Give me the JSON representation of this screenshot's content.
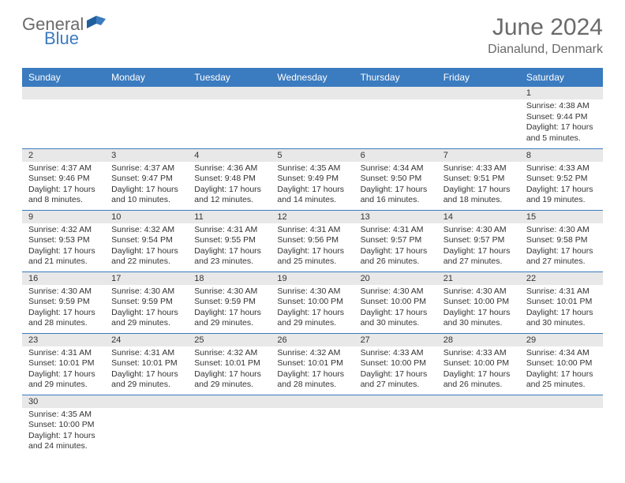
{
  "logo": {
    "text1": "General",
    "text2": "Blue"
  },
  "title": "June 2024",
  "location": "Dianalund, Denmark",
  "colors": {
    "header_bg": "#3b7bbf",
    "header_text": "#ffffff",
    "daynum_bg": "#e8e8e8",
    "divider": "#3b7bbf",
    "page_bg": "#ffffff",
    "text": "#333333",
    "title_color": "#6a6a6a"
  },
  "weekdays": [
    "Sunday",
    "Monday",
    "Tuesday",
    "Wednesday",
    "Thursday",
    "Friday",
    "Saturday"
  ],
  "weeks": [
    [
      {
        "n": "",
        "sr": "",
        "ss": "",
        "dl": ""
      },
      {
        "n": "",
        "sr": "",
        "ss": "",
        "dl": ""
      },
      {
        "n": "",
        "sr": "",
        "ss": "",
        "dl": ""
      },
      {
        "n": "",
        "sr": "",
        "ss": "",
        "dl": ""
      },
      {
        "n": "",
        "sr": "",
        "ss": "",
        "dl": ""
      },
      {
        "n": "",
        "sr": "",
        "ss": "",
        "dl": ""
      },
      {
        "n": "1",
        "sr": "Sunrise: 4:38 AM",
        "ss": "Sunset: 9:44 PM",
        "dl": "Daylight: 17 hours and 5 minutes."
      }
    ],
    [
      {
        "n": "2",
        "sr": "Sunrise: 4:37 AM",
        "ss": "Sunset: 9:46 PM",
        "dl": "Daylight: 17 hours and 8 minutes."
      },
      {
        "n": "3",
        "sr": "Sunrise: 4:37 AM",
        "ss": "Sunset: 9:47 PM",
        "dl": "Daylight: 17 hours and 10 minutes."
      },
      {
        "n": "4",
        "sr": "Sunrise: 4:36 AM",
        "ss": "Sunset: 9:48 PM",
        "dl": "Daylight: 17 hours and 12 minutes."
      },
      {
        "n": "5",
        "sr": "Sunrise: 4:35 AM",
        "ss": "Sunset: 9:49 PM",
        "dl": "Daylight: 17 hours and 14 minutes."
      },
      {
        "n": "6",
        "sr": "Sunrise: 4:34 AM",
        "ss": "Sunset: 9:50 PM",
        "dl": "Daylight: 17 hours and 16 minutes."
      },
      {
        "n": "7",
        "sr": "Sunrise: 4:33 AM",
        "ss": "Sunset: 9:51 PM",
        "dl": "Daylight: 17 hours and 18 minutes."
      },
      {
        "n": "8",
        "sr": "Sunrise: 4:33 AM",
        "ss": "Sunset: 9:52 PM",
        "dl": "Daylight: 17 hours and 19 minutes."
      }
    ],
    [
      {
        "n": "9",
        "sr": "Sunrise: 4:32 AM",
        "ss": "Sunset: 9:53 PM",
        "dl": "Daylight: 17 hours and 21 minutes."
      },
      {
        "n": "10",
        "sr": "Sunrise: 4:32 AM",
        "ss": "Sunset: 9:54 PM",
        "dl": "Daylight: 17 hours and 22 minutes."
      },
      {
        "n": "11",
        "sr": "Sunrise: 4:31 AM",
        "ss": "Sunset: 9:55 PM",
        "dl": "Daylight: 17 hours and 23 minutes."
      },
      {
        "n": "12",
        "sr": "Sunrise: 4:31 AM",
        "ss": "Sunset: 9:56 PM",
        "dl": "Daylight: 17 hours and 25 minutes."
      },
      {
        "n": "13",
        "sr": "Sunrise: 4:31 AM",
        "ss": "Sunset: 9:57 PM",
        "dl": "Daylight: 17 hours and 26 minutes."
      },
      {
        "n": "14",
        "sr": "Sunrise: 4:30 AM",
        "ss": "Sunset: 9:57 PM",
        "dl": "Daylight: 17 hours and 27 minutes."
      },
      {
        "n": "15",
        "sr": "Sunrise: 4:30 AM",
        "ss": "Sunset: 9:58 PM",
        "dl": "Daylight: 17 hours and 27 minutes."
      }
    ],
    [
      {
        "n": "16",
        "sr": "Sunrise: 4:30 AM",
        "ss": "Sunset: 9:59 PM",
        "dl": "Daylight: 17 hours and 28 minutes."
      },
      {
        "n": "17",
        "sr": "Sunrise: 4:30 AM",
        "ss": "Sunset: 9:59 PM",
        "dl": "Daylight: 17 hours and 29 minutes."
      },
      {
        "n": "18",
        "sr": "Sunrise: 4:30 AM",
        "ss": "Sunset: 9:59 PM",
        "dl": "Daylight: 17 hours and 29 minutes."
      },
      {
        "n": "19",
        "sr": "Sunrise: 4:30 AM",
        "ss": "Sunset: 10:00 PM",
        "dl": "Daylight: 17 hours and 29 minutes."
      },
      {
        "n": "20",
        "sr": "Sunrise: 4:30 AM",
        "ss": "Sunset: 10:00 PM",
        "dl": "Daylight: 17 hours and 30 minutes."
      },
      {
        "n": "21",
        "sr": "Sunrise: 4:30 AM",
        "ss": "Sunset: 10:00 PM",
        "dl": "Daylight: 17 hours and 30 minutes."
      },
      {
        "n": "22",
        "sr": "Sunrise: 4:31 AM",
        "ss": "Sunset: 10:01 PM",
        "dl": "Daylight: 17 hours and 30 minutes."
      }
    ],
    [
      {
        "n": "23",
        "sr": "Sunrise: 4:31 AM",
        "ss": "Sunset: 10:01 PM",
        "dl": "Daylight: 17 hours and 29 minutes."
      },
      {
        "n": "24",
        "sr": "Sunrise: 4:31 AM",
        "ss": "Sunset: 10:01 PM",
        "dl": "Daylight: 17 hours and 29 minutes."
      },
      {
        "n": "25",
        "sr": "Sunrise: 4:32 AM",
        "ss": "Sunset: 10:01 PM",
        "dl": "Daylight: 17 hours and 29 minutes."
      },
      {
        "n": "26",
        "sr": "Sunrise: 4:32 AM",
        "ss": "Sunset: 10:01 PM",
        "dl": "Daylight: 17 hours and 28 minutes."
      },
      {
        "n": "27",
        "sr": "Sunrise: 4:33 AM",
        "ss": "Sunset: 10:00 PM",
        "dl": "Daylight: 17 hours and 27 minutes."
      },
      {
        "n": "28",
        "sr": "Sunrise: 4:33 AM",
        "ss": "Sunset: 10:00 PM",
        "dl": "Daylight: 17 hours and 26 minutes."
      },
      {
        "n": "29",
        "sr": "Sunrise: 4:34 AM",
        "ss": "Sunset: 10:00 PM",
        "dl": "Daylight: 17 hours and 25 minutes."
      }
    ],
    [
      {
        "n": "30",
        "sr": "Sunrise: 4:35 AM",
        "ss": "Sunset: 10:00 PM",
        "dl": "Daylight: 17 hours and 24 minutes."
      },
      {
        "n": "",
        "sr": "",
        "ss": "",
        "dl": ""
      },
      {
        "n": "",
        "sr": "",
        "ss": "",
        "dl": ""
      },
      {
        "n": "",
        "sr": "",
        "ss": "",
        "dl": ""
      },
      {
        "n": "",
        "sr": "",
        "ss": "",
        "dl": ""
      },
      {
        "n": "",
        "sr": "",
        "ss": "",
        "dl": ""
      },
      {
        "n": "",
        "sr": "",
        "ss": "",
        "dl": ""
      }
    ]
  ]
}
